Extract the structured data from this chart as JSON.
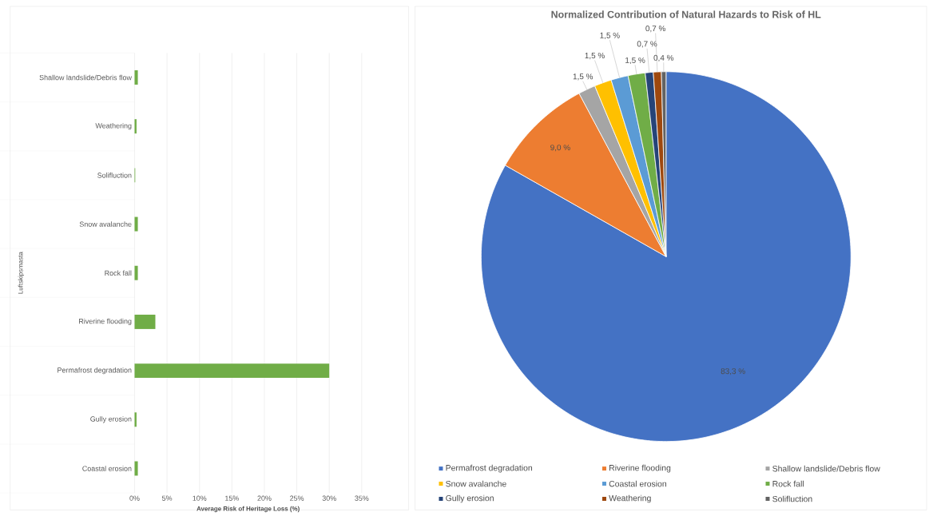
{
  "chart_data": [
    {
      "type": "bar",
      "orientation": "horizontal",
      "xlabel": "Average Risk of Heritage Loss (%)",
      "ylabel": "Luftskipsmasta",
      "categories": [
        "Shallow landslide/Debris flow",
        "Weathering",
        "Solifluction",
        "Snow avalanche",
        "Rock fall",
        "Riverine flooding",
        "Permafrost degradation",
        "Gully erosion",
        "Coastal erosion"
      ],
      "values": [
        0.5,
        0.3,
        0.1,
        0.5,
        0.5,
        3.2,
        30,
        0.3,
        0.5
      ],
      "color": "#70ad47",
      "xlim": [
        0,
        35
      ],
      "xticks": [
        {
          "value": 0,
          "label": "0%"
        },
        {
          "value": 5,
          "label": "5%"
        },
        {
          "value": 10,
          "label": "10%"
        },
        {
          "value": 15,
          "label": "15%"
        },
        {
          "value": 20,
          "label": "20%"
        },
        {
          "value": 25,
          "label": "25%"
        },
        {
          "value": 30,
          "label": "30%"
        },
        {
          "value": 35,
          "label": "35%"
        }
      ],
      "grid": "x",
      "legend": false
    },
    {
      "type": "pie",
      "title": "Normalized Contribution of Natural Hazards to Risk of HL",
      "categories": [
        "Permafrost degradation",
        "Riverine flooding",
        "Shallow landslide/Debris flow",
        "Snow avalanche",
        "Coastal erosion",
        "Rock fall",
        "Gully erosion",
        "Weathering",
        "Solifluction"
      ],
      "values": [
        83.3,
        9.0,
        1.5,
        1.5,
        1.5,
        1.5,
        0.7,
        0.7,
        0.4
      ],
      "value_labels": [
        "83,3 %",
        "9,0 %",
        "1,5 %",
        "1,5 %",
        "1,5 %",
        "1,5 %",
        "0,7 %",
        "0,7 %",
        "0,4 %"
      ],
      "colors": [
        "#4472c4",
        "#ed7d31",
        "#a5a5a5",
        "#ffc000",
        "#5b9bd5",
        "#70ad47",
        "#264478",
        "#9e480e",
        "#636363"
      ],
      "legend": "bottom"
    }
  ]
}
